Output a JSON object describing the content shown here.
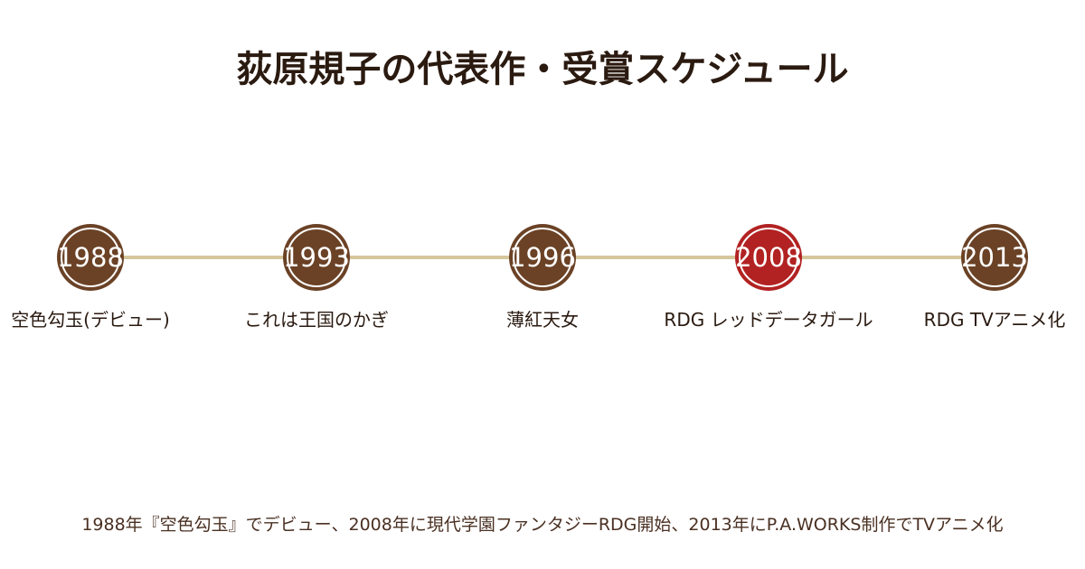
{
  "header": {
    "title": "荻原規子の代表作・受賞スケジュール"
  },
  "timeline": {
    "line_color": "#d6c69b",
    "nodes": [
      {
        "year": "1988",
        "label": "空色勾玉(デビュー)",
        "color": "#6b4226"
      },
      {
        "year": "1993",
        "label": "これは王国のかぎ",
        "color": "#6b4226"
      },
      {
        "year": "1996",
        "label": "薄紅天女",
        "color": "#6b4226"
      },
      {
        "year": "2008",
        "label": "RDG レッドデータガール",
        "color": "#b22222"
      },
      {
        "year": "2013",
        "label": "RDG TVアニメ化",
        "color": "#6b4226"
      }
    ]
  },
  "footer": {
    "caption": "1988年『空色勾玉』でデビュー、2008年に現代学園ファンタジーRDG開始、2013年にP.A.WORKS制作でTVアニメ化"
  }
}
